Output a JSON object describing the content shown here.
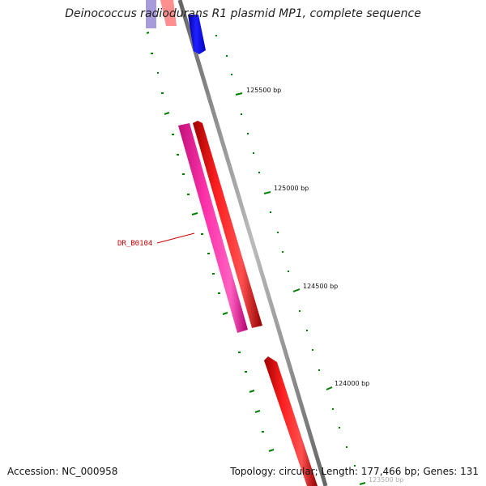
{
  "title": "Deinococcus radiodurans R1 plasmid MP1, complete sequence",
  "accession": "Accession: NC_000958",
  "summary": "Topology: circular; Length: 177,466 bp; Genes: 131",
  "colors": {
    "backbone": "#888888",
    "forward_gene": "#ff0000",
    "reverse_gene": "#ff22aa",
    "other_gene": "#1010ff",
    "ruler_tick": "#008000",
    "gene_label": "#cc0000"
  },
  "position_labels": [
    "125500 bp",
    "125000 bp",
    "124500 bp",
    "124000 bp",
    "123500 bp"
  ],
  "gene_labels": [
    "DR_B0104"
  ]
}
